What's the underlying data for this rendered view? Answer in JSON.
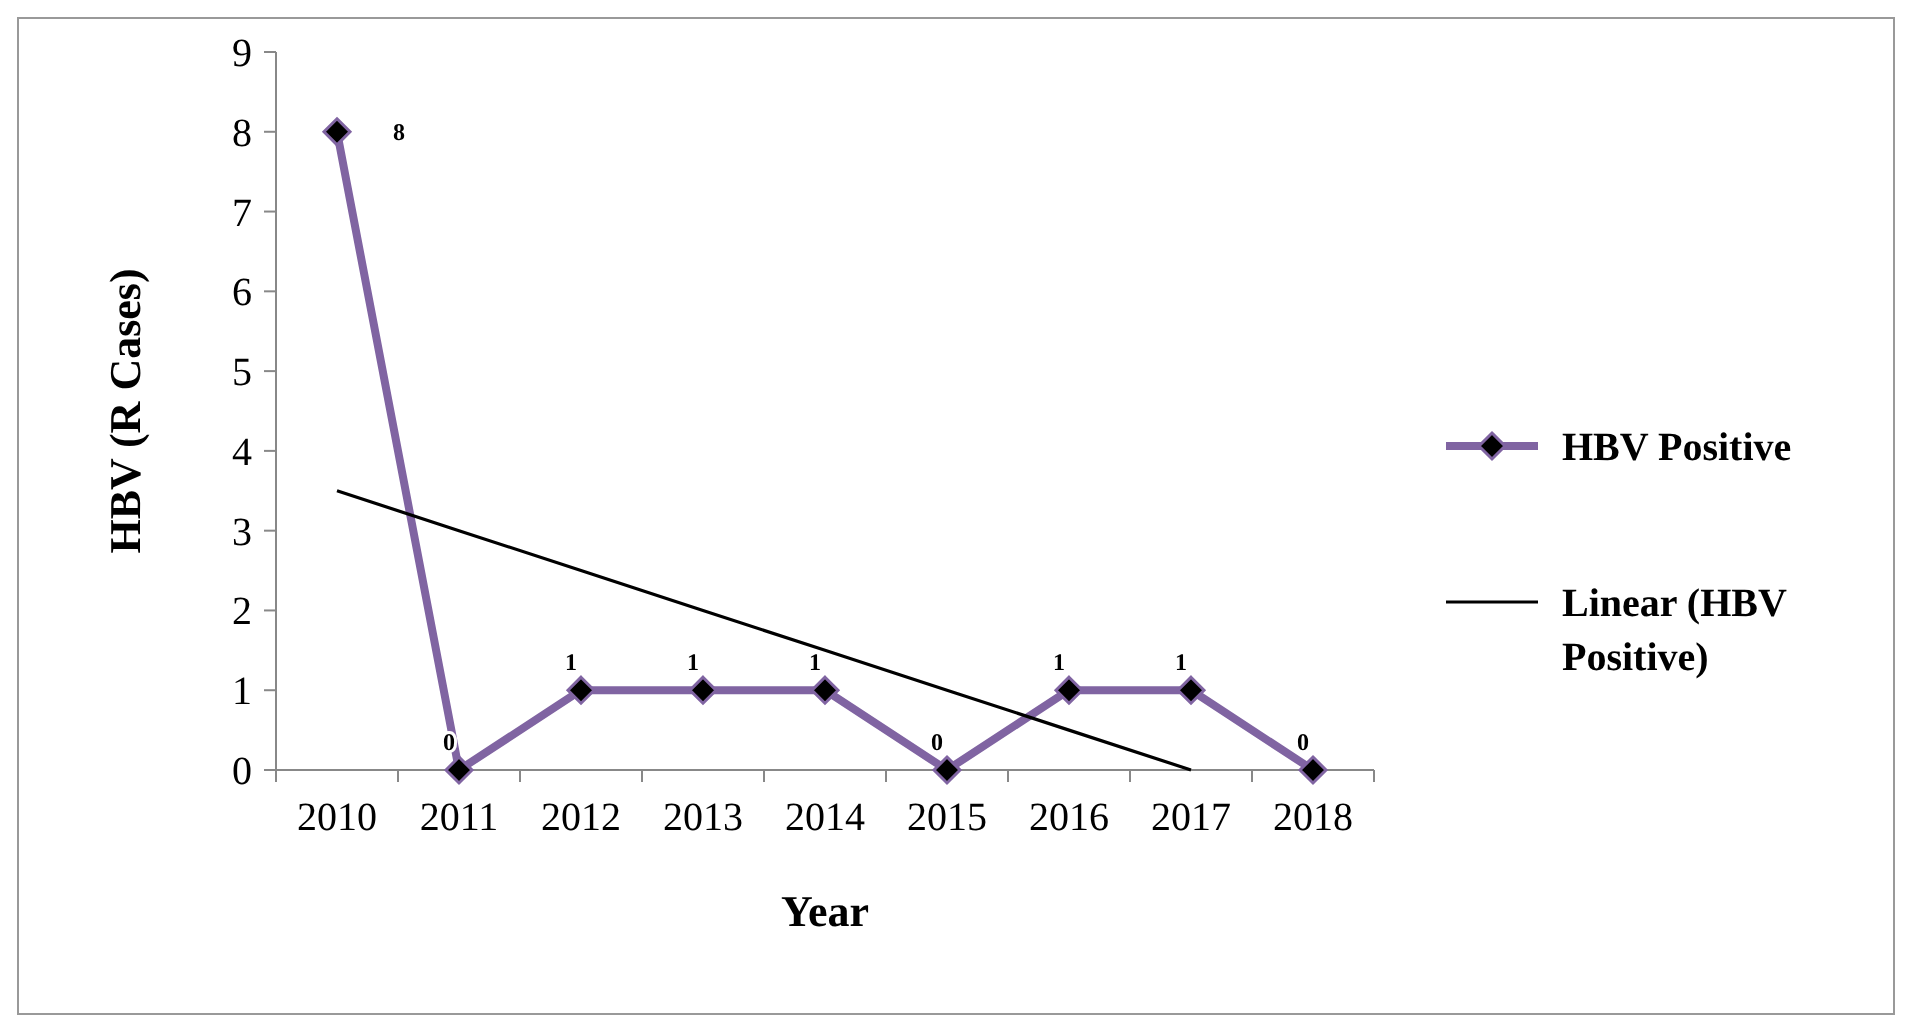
{
  "chart_data": {
    "type": "line",
    "xlabel": "Year",
    "ylabel": "HBV (R Cases)",
    "categories": [
      "2010",
      "2011",
      "2012",
      "2013",
      "2014",
      "2015",
      "2016",
      "2017",
      "2018"
    ],
    "series": [
      {
        "name": "HBV Positive",
        "color": "#8064a2",
        "values": [
          8,
          0,
          1,
          1,
          1,
          0,
          1,
          1,
          0
        ],
        "marker": "diamond",
        "data_labels": true
      },
      {
        "name": "Linear (HBV Positive)",
        "type": "line",
        "color": "#000000",
        "values": [
          3.5,
          3.0,
          2.5,
          2.0,
          1.5,
          1.0,
          0.5,
          0.0,
          null
        ],
        "marker": "none"
      }
    ],
    "ylim": [
      0,
      9
    ],
    "yticks": [
      0,
      1,
      2,
      3,
      4,
      5,
      6,
      7,
      8,
      9
    ],
    "grid": false,
    "legend": "right"
  }
}
